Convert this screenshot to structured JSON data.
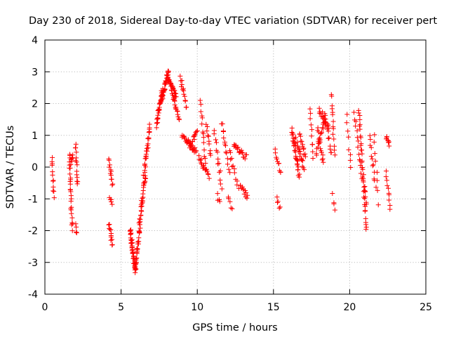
{
  "chart_data": {
    "type": "scatter",
    "title": "Day 230 of 2018, Sidereal Day-to-day VTEC variation (SDTVAR) for receiver pert",
    "xlabel": "GPS time / hours",
    "ylabel": "SDTVAR / TECUs",
    "xlim": [
      0,
      25
    ],
    "ylim": [
      -4,
      4
    ],
    "xticks": [
      0,
      5,
      10,
      15,
      20,
      25
    ],
    "yticks": [
      -4,
      -3,
      -2,
      -1,
      0,
      1,
      2,
      3,
      4
    ],
    "xtick_labels": [
      "0",
      "5",
      "10",
      "15",
      "20",
      "25"
    ],
    "ytick_labels": [
      "-4",
      "-3",
      "-2",
      "-1",
      "0",
      "1",
      "2",
      "3",
      "4"
    ],
    "grid": true,
    "marker": "plus",
    "color": "#ff0000",
    "series": [
      {
        "name": "SDTVAR",
        "segments": [
          {
            "x0": 0.45,
            "x1": 0.6,
            "y0": 0.3,
            "y1": -0.9,
            "n": 12
          },
          {
            "x0": 1.6,
            "x1": 1.8,
            "y0": 0.4,
            "y1": -2.0,
            "n": 26
          },
          {
            "x0": 1.65,
            "x1": 1.85,
            "y0": 0.1,
            "y1": 0.3,
            "n": 8
          },
          {
            "x0": 2.0,
            "x1": 2.15,
            "y0": 0.75,
            "y1": -0.6,
            "n": 14
          },
          {
            "x0": 2.0,
            "x1": 2.1,
            "y0": -1.85,
            "y1": -2.05,
            "n": 4
          },
          {
            "x0": 4.2,
            "x1": 4.45,
            "y0": 0.2,
            "y1": -0.6,
            "n": 12
          },
          {
            "x0": 4.25,
            "x1": 4.4,
            "y0": -1.0,
            "y1": -1.15,
            "n": 5
          },
          {
            "x0": 4.2,
            "x1": 4.45,
            "y0": -1.8,
            "y1": -2.45,
            "n": 12
          },
          {
            "x0": 5.6,
            "x1": 5.95,
            "y0": -2.0,
            "y1": -3.3,
            "n": 40
          },
          {
            "x0": 5.95,
            "x1": 6.25,
            "y0": -3.2,
            "y1": -1.8,
            "n": 28
          },
          {
            "x0": 6.2,
            "x1": 6.6,
            "y0": -1.8,
            "y1": -0.2,
            "n": 30
          },
          {
            "x0": 6.5,
            "x1": 6.9,
            "y0": -0.2,
            "y1": 1.3,
            "n": 28
          },
          {
            "x0": 7.3,
            "x1": 7.7,
            "y0": 1.3,
            "y1": 2.4,
            "n": 30
          },
          {
            "x0": 7.6,
            "x1": 8.1,
            "y0": 2.0,
            "y1": 3.0,
            "n": 36
          },
          {
            "x0": 8.0,
            "x1": 8.6,
            "y0": 2.9,
            "y1": 2.2,
            "n": 30
          },
          {
            "x0": 8.3,
            "x1": 8.8,
            "y0": 2.4,
            "y1": 1.5,
            "n": 20
          },
          {
            "x0": 8.9,
            "x1": 9.3,
            "y0": 2.8,
            "y1": 1.9,
            "n": 14
          },
          {
            "x0": 9.0,
            "x1": 9.9,
            "y0": 1.0,
            "y1": 0.5,
            "n": 30
          },
          {
            "x0": 9.5,
            "x1": 10.0,
            "y0": 0.6,
            "y1": 1.2,
            "n": 14
          },
          {
            "x0": 10.2,
            "x1": 10.5,
            "y0": 2.1,
            "y1": 0.1,
            "n": 14
          },
          {
            "x0": 10.1,
            "x1": 10.8,
            "y0": 0.3,
            "y1": -0.3,
            "n": 18
          },
          {
            "x0": 10.6,
            "x1": 10.9,
            "y0": 1.3,
            "y1": 0.4,
            "n": 10
          },
          {
            "x0": 11.1,
            "x1": 11.6,
            "y0": 1.1,
            "y1": -0.6,
            "n": 14
          },
          {
            "x0": 11.3,
            "x1": 11.5,
            "y0": -0.9,
            "y1": -1.1,
            "n": 4
          },
          {
            "x0": 11.6,
            "x1": 12.1,
            "y0": 1.4,
            "y1": -0.1,
            "n": 14
          },
          {
            "x0": 12.0,
            "x1": 12.3,
            "y0": -1.0,
            "y1": -1.3,
            "n": 5
          },
          {
            "x0": 12.1,
            "x1": 12.7,
            "y0": 0.5,
            "y1": -0.6,
            "n": 12
          },
          {
            "x0": 12.4,
            "x1": 13.2,
            "y0": 0.7,
            "y1": 0.3,
            "n": 20
          },
          {
            "x0": 12.8,
            "x1": 13.3,
            "y0": -0.6,
            "y1": -0.95,
            "n": 12
          },
          {
            "x0": 15.1,
            "x1": 15.5,
            "y0": 0.5,
            "y1": -0.2,
            "n": 10
          },
          {
            "x0": 15.2,
            "x1": 15.4,
            "y0": -1.0,
            "y1": -1.3,
            "n": 5
          },
          {
            "x0": 16.2,
            "x1": 16.7,
            "y0": 1.2,
            "y1": -0.3,
            "n": 30
          },
          {
            "x0": 16.4,
            "x1": 17.0,
            "y0": 0.9,
            "y1": 0.0,
            "n": 20
          },
          {
            "x0": 16.7,
            "x1": 17.1,
            "y0": 1.1,
            "y1": 0.3,
            "n": 12
          },
          {
            "x0": 17.4,
            "x1": 17.6,
            "y0": 1.8,
            "y1": 0.3,
            "n": 10
          },
          {
            "x0": 17.9,
            "x1": 18.3,
            "y0": 1.2,
            "y1": 0.1,
            "n": 14
          },
          {
            "x0": 17.8,
            "x1": 18.4,
            "y0": 0.4,
            "y1": 1.6,
            "n": 18
          },
          {
            "x0": 18.0,
            "x1": 18.6,
            "y0": 1.8,
            "y1": 1.3,
            "n": 18
          },
          {
            "x0": 18.4,
            "x1": 18.8,
            "y0": 1.6,
            "y1": 0.4,
            "n": 12
          },
          {
            "x0": 18.8,
            "x1": 19.0,
            "y0": 2.3,
            "y1": 0.4,
            "n": 14
          },
          {
            "x0": 18.9,
            "x1": 19.0,
            "y0": -0.9,
            "y1": -1.4,
            "n": 4
          },
          {
            "x0": 19.8,
            "x1": 20.1,
            "y0": 1.6,
            "y1": -0.1,
            "n": 8
          },
          {
            "x0": 20.3,
            "x1": 20.8,
            "y0": 1.7,
            "y1": -0.3,
            "n": 14
          },
          {
            "x0": 20.6,
            "x1": 21.1,
            "y0": 1.8,
            "y1": -2.0,
            "n": 36
          },
          {
            "x0": 20.9,
            "x1": 21.1,
            "y0": -0.3,
            "y1": -1.2,
            "n": 8
          },
          {
            "x0": 21.3,
            "x1": 21.7,
            "y0": 1.0,
            "y1": -0.6,
            "n": 12
          },
          {
            "x0": 21.6,
            "x1": 21.9,
            "y0": 1.0,
            "y1": -1.1,
            "n": 8
          },
          {
            "x0": 22.4,
            "x1": 22.6,
            "y0": 1.0,
            "y1": 0.7,
            "n": 8
          },
          {
            "x0": 22.4,
            "x1": 22.65,
            "y0": -0.2,
            "y1": -1.25,
            "n": 10
          }
        ]
      }
    ]
  }
}
